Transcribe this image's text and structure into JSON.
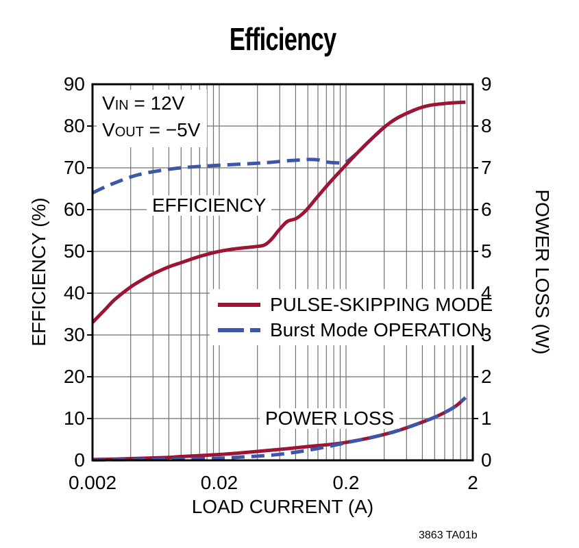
{
  "title": "Efficiency",
  "footer": "3863 TA01b",
  "annotation": {
    "lines": [
      {
        "main": "V",
        "sub": "IN",
        "rest": " = 12V"
      },
      {
        "main": "V",
        "sub": "OUT",
        "rest": " = −5V"
      }
    ]
  },
  "inplot_labels": {
    "efficiency": "EFFICIENCY",
    "power_loss": "POWER LOSS"
  },
  "chart_data": {
    "type": "line",
    "title": "Efficiency",
    "xlabel": "LOAD CURRENT (A)",
    "ylabel_left": "EFFICIENCY (%)",
    "ylabel_right": "POWER LOSS (W)",
    "x_scale": "log",
    "xlim": [
      0.002,
      2
    ],
    "ylim_left": [
      0,
      90
    ],
    "ylim_right": [
      0,
      9
    ],
    "grid": true,
    "legend_position": "center-right-inside",
    "x_tick_labels": [
      "0.002",
      "0.02",
      "0.2",
      "2"
    ],
    "x_tick_values": [
      0.002,
      0.02,
      0.2,
      2
    ],
    "y_left_ticks": [
      0,
      10,
      20,
      30,
      40,
      50,
      60,
      70,
      80,
      90
    ],
    "y_right_ticks": [
      0,
      1,
      2,
      3,
      4,
      5,
      6,
      7,
      8,
      9
    ],
    "colors": {
      "pulse_skipping": "#9C1535",
      "burst": "#3E56A8",
      "grid": "#6F6F6F",
      "frame": "#000000"
    },
    "series": [
      {
        "name": "PULSE-SKIPPING MODE",
        "measure": "efficiency",
        "axis": "left",
        "line": "solid",
        "color": "#9C1535",
        "points": [
          [
            0.002,
            33
          ],
          [
            0.0025,
            36
          ],
          [
            0.003,
            38.5
          ],
          [
            0.004,
            41.5
          ],
          [
            0.005,
            43.3
          ],
          [
            0.006,
            44.6
          ],
          [
            0.008,
            46.3
          ],
          [
            0.01,
            47.3
          ],
          [
            0.013,
            48.5
          ],
          [
            0.016,
            49.3
          ],
          [
            0.02,
            50
          ],
          [
            0.025,
            50.5
          ],
          [
            0.03,
            50.8
          ],
          [
            0.04,
            51.2
          ],
          [
            0.046,
            51.6
          ],
          [
            0.052,
            53
          ],
          [
            0.058,
            54.8
          ],
          [
            0.065,
            56.5
          ],
          [
            0.07,
            57.3
          ],
          [
            0.08,
            57.8
          ],
          [
            0.09,
            58.9
          ],
          [
            0.1,
            60.3
          ],
          [
            0.12,
            63.2
          ],
          [
            0.15,
            66.6
          ],
          [
            0.2,
            70.7
          ],
          [
            0.25,
            73.8
          ],
          [
            0.3,
            76.2
          ],
          [
            0.4,
            79.7
          ],
          [
            0.5,
            81.8
          ],
          [
            0.7,
            83.9
          ],
          [
            0.9,
            84.9
          ],
          [
            1.2,
            85.4
          ],
          [
            1.5,
            85.6
          ],
          [
            1.75,
            85.7
          ]
        ]
      },
      {
        "name": "Burst Mode OPERATION",
        "measure": "efficiency",
        "axis": "left",
        "line": "dashed",
        "color": "#3E56A8",
        "points": [
          [
            0.002,
            64
          ],
          [
            0.0025,
            65.4
          ],
          [
            0.003,
            66.4
          ],
          [
            0.004,
            67.8
          ],
          [
            0.005,
            68.6
          ],
          [
            0.007,
            69.4
          ],
          [
            0.01,
            70
          ],
          [
            0.015,
            70.4
          ],
          [
            0.02,
            70.6
          ],
          [
            0.03,
            70.9
          ],
          [
            0.04,
            71.1
          ],
          [
            0.05,
            71.3
          ],
          [
            0.07,
            71.7
          ],
          [
            0.09,
            71.9
          ],
          [
            0.1,
            72
          ],
          [
            0.12,
            71.9
          ],
          [
            0.14,
            71.4
          ],
          [
            0.17,
            71.2
          ],
          [
            0.2,
            71.4
          ],
          [
            0.25,
            73.8
          ],
          [
            0.3,
            76.2
          ],
          [
            0.4,
            79.7
          ],
          [
            0.5,
            81.8
          ],
          [
            0.6,
            83
          ],
          [
            0.7,
            83.9
          ]
        ]
      },
      {
        "name": "PULSE-SKIPPING MODE",
        "measure": "power_loss",
        "axis": "right",
        "line": "solid",
        "color": "#9C1535",
        "points": [
          [
            0.002,
            0.02
          ],
          [
            0.003,
            0.03
          ],
          [
            0.005,
            0.05
          ],
          [
            0.008,
            0.07
          ],
          [
            0.01,
            0.09
          ],
          [
            0.02,
            0.14
          ],
          [
            0.03,
            0.18
          ],
          [
            0.05,
            0.24
          ],
          [
            0.07,
            0.28
          ],
          [
            0.1,
            0.33
          ],
          [
            0.15,
            0.38
          ],
          [
            0.2,
            0.43
          ],
          [
            0.3,
            0.53
          ],
          [
            0.4,
            0.62
          ],
          [
            0.5,
            0.7
          ],
          [
            0.7,
            0.85
          ],
          [
            1,
            1.03
          ],
          [
            1.3,
            1.2
          ],
          [
            1.5,
            1.32
          ],
          [
            1.75,
            1.5
          ]
        ]
      },
      {
        "name": "Burst Mode OPERATION",
        "measure": "power_loss",
        "axis": "right",
        "line": "dashed",
        "color": "#3E56A8",
        "points": [
          [
            0.002,
            0.01
          ],
          [
            0.005,
            0.02
          ],
          [
            0.01,
            0.03
          ],
          [
            0.02,
            0.05
          ],
          [
            0.03,
            0.08
          ],
          [
            0.05,
            0.12
          ],
          [
            0.07,
            0.17
          ],
          [
            0.1,
            0.24
          ],
          [
            0.15,
            0.34
          ],
          [
            0.2,
            0.42
          ],
          [
            0.3,
            0.53
          ],
          [
            0.4,
            0.62
          ],
          [
            0.5,
            0.7
          ],
          [
            0.7,
            0.85
          ],
          [
            1,
            1.03
          ],
          [
            1.3,
            1.2
          ],
          [
            1.5,
            1.32
          ],
          [
            1.75,
            1.5
          ]
        ]
      }
    ]
  }
}
